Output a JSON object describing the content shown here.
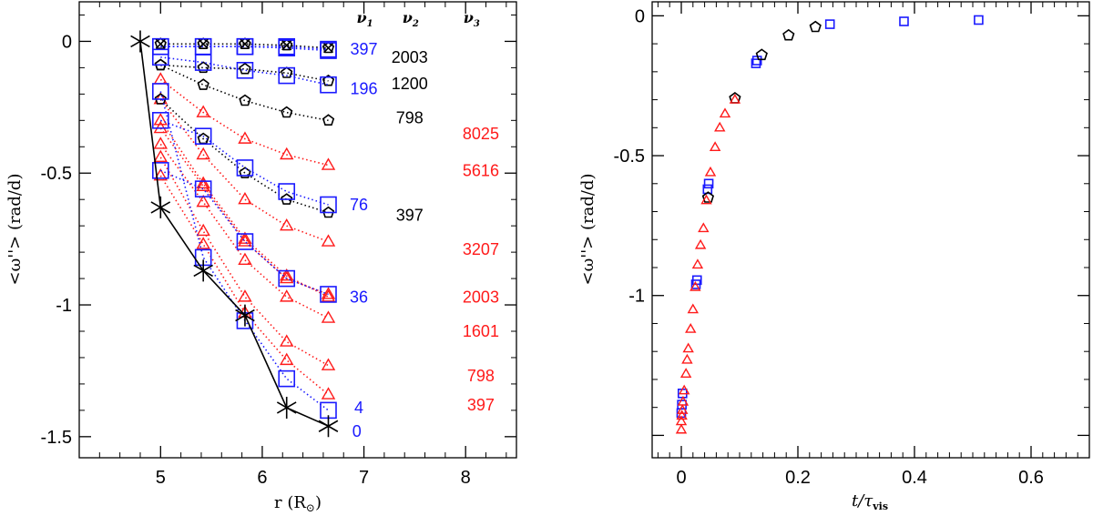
{
  "colors": {
    "blue": "#1a1aff",
    "black": "#000000",
    "red": "#ff1a1a"
  },
  "chart_data": [
    {
      "type": "line",
      "panel": "left",
      "xlabel_main": "r (R",
      "xlabel_sub": "⊙",
      "xlabel_close": ")",
      "ylabel": "<ω''> (rad/d)",
      "xlim": [
        4.2,
        8.5
      ],
      "ylim": [
        -1.58,
        0.15
      ],
      "xticks": [
        "5",
        "6",
        "7",
        "8"
      ],
      "yticks": [
        "0",
        "-0.5",
        "-1",
        "-1.5"
      ],
      "x": [
        5.0,
        5.42,
        5.83,
        6.24,
        6.65
      ],
      "column_headers": [
        {
          "symbol": "ν",
          "sub": "1"
        },
        {
          "symbol": "ν",
          "sub": "2"
        },
        {
          "symbol": "ν",
          "sub": "3"
        }
      ],
      "envelope": {
        "name": "envelope",
        "x": [
          4.8,
          5.0,
          5.42,
          5.83,
          6.24,
          6.65
        ],
        "values": [
          0.0,
          -0.63,
          -0.87,
          -1.04,
          -1.39,
          -1.46
        ]
      },
      "series_blue": [
        {
          "name": "397",
          "values": [
            -0.02,
            -0.02,
            -0.02,
            -0.025,
            -0.035
          ]
        },
        {
          "name": "196",
          "values": [
            -0.06,
            -0.08,
            -0.11,
            -0.13,
            -0.165
          ]
        },
        {
          "name": "76",
          "values": [
            -0.3,
            -0.36,
            -0.48,
            -0.57,
            -0.62
          ]
        },
        {
          "name": "36",
          "values": [
            -0.49,
            -0.56,
            -0.76,
            -0.9,
            -0.96
          ]
        },
        {
          "name": "4",
          "values": [
            -0.19,
            -0.82,
            -1.06,
            -1.28,
            -1.4
          ]
        },
        {
          "name": "0",
          "values": [
            -0.02,
            -0.02,
            -0.02,
            -0.02,
            -0.03
          ]
        }
      ],
      "series_black": [
        {
          "name": "2003",
          "values": [
            -0.01,
            -0.01,
            -0.01,
            -0.015,
            -0.025
          ]
        },
        {
          "name": "1200",
          "values": [
            -0.09,
            -0.1,
            -0.105,
            -0.12,
            -0.15
          ]
        },
        {
          "name": "798",
          "values": [
            -0.09,
            -0.165,
            -0.225,
            -0.27,
            -0.3
          ]
        },
        {
          "name": "397",
          "values": [
            -0.22,
            -0.37,
            -0.5,
            -0.6,
            -0.65
          ]
        }
      ],
      "series_red": [
        {
          "name": "8025",
          "values": [
            -0.145,
            -0.27,
            -0.37,
            -0.43,
            -0.47
          ]
        },
        {
          "name": "5616",
          "values": [
            -0.22,
            -0.43,
            -0.6,
            -0.7,
            -0.76
          ]
        },
        {
          "name": "3207",
          "values": [
            -0.3,
            -0.54,
            -0.75,
            -0.89,
            -0.97
          ]
        },
        {
          "name": "2003",
          "values": [
            -0.39,
            -0.61,
            -0.83,
            -0.97,
            -1.05
          ]
        },
        {
          "name": "1601",
          "values": [
            -0.44,
            -0.72,
            -0.97,
            -1.14,
            -1.23
          ]
        },
        {
          "name": "798",
          "values": [
            -0.51,
            -0.77,
            -1.03,
            -1.21,
            -1.34
          ]
        },
        {
          "name": "397",
          "values": [
            -0.33,
            -0.55,
            -0.76,
            -0.9,
            -0.96
          ]
        }
      ],
      "annotations": [
        {
          "text": "397",
          "color": "blue",
          "x": 7.0,
          "y": -0.03
        },
        {
          "text": "196",
          "color": "blue",
          "x": 7.0,
          "y": -0.18
        },
        {
          "text": "76",
          "color": "blue",
          "x": 6.95,
          "y": -0.62
        },
        {
          "text": "36",
          "color": "blue",
          "x": 6.95,
          "y": -0.97
        },
        {
          "text": "4",
          "color": "blue",
          "x": 6.95,
          "y": -1.39
        },
        {
          "text": "0",
          "color": "blue",
          "x": 6.93,
          "y": -1.48
        },
        {
          "text": "2003",
          "color": "black",
          "x": 7.45,
          "y": -0.06
        },
        {
          "text": "1200",
          "color": "black",
          "x": 7.45,
          "y": -0.16
        },
        {
          "text": "798",
          "color": "black",
          "x": 7.45,
          "y": -0.29
        },
        {
          "text": "397",
          "color": "black",
          "x": 7.45,
          "y": -0.66
        },
        {
          "text": "8025",
          "color": "red",
          "x": 8.15,
          "y": -0.35
        },
        {
          "text": "5616",
          "color": "red",
          "x": 8.15,
          "y": -0.49
        },
        {
          "text": "3207",
          "color": "red",
          "x": 8.15,
          "y": -0.79
        },
        {
          "text": "2003",
          "color": "red",
          "x": 8.15,
          "y": -0.97
        },
        {
          "text": "1601",
          "color": "red",
          "x": 8.15,
          "y": -1.1
        },
        {
          "text": "798",
          "color": "red",
          "x": 8.15,
          "y": -1.27
        },
        {
          "text": "397",
          "color": "red",
          "x": 8.15,
          "y": -1.38
        }
      ]
    },
    {
      "type": "scatter",
      "panel": "right",
      "xlabel_main": "t/τ",
      "xlabel_sub": "vis",
      "ylabel": "<ω''> (rad/d)",
      "xlim": [
        -0.05,
        0.7
      ],
      "ylim": [
        -1.58,
        0.05
      ],
      "xticks": [
        "0",
        "0.2",
        "0.4",
        "0.6"
      ],
      "yticks": [
        "0",
        "-0.5",
        "-1"
      ],
      "series": [
        {
          "name": "blue-squares",
          "color": "blue",
          "marker": "square",
          "x": [
            0.0,
            0.001,
            0.002,
            0.025,
            0.027,
            0.045,
            0.047,
            0.128,
            0.13,
            0.255,
            0.382,
            0.51
          ],
          "y": [
            -1.42,
            -1.39,
            -1.35,
            -0.96,
            -0.945,
            -0.62,
            -0.6,
            -0.17,
            -0.16,
            -0.03,
            -0.02,
            -0.015
          ]
        },
        {
          "name": "black-pentagons",
          "color": "black",
          "marker": "pentagon",
          "x": [
            0.046,
            0.092,
            0.138,
            0.184,
            0.23
          ],
          "y": [
            -0.65,
            -0.295,
            -0.14,
            -0.07,
            -0.04
          ]
        },
        {
          "name": "red-triangles",
          "color": "red",
          "marker": "triangle",
          "x": [
            0.0,
            0.0,
            0.001,
            0.002,
            0.003,
            0.005,
            0.008,
            0.01,
            0.012,
            0.016,
            0.02,
            0.024,
            0.028,
            0.033,
            0.038,
            0.043,
            0.05,
            0.058,
            0.066,
            0.075,
            0.092
          ],
          "y": [
            -1.48,
            -1.45,
            -1.43,
            -1.41,
            -1.38,
            -1.34,
            -1.28,
            -1.23,
            -1.19,
            -1.12,
            -1.05,
            -0.97,
            -0.89,
            -0.82,
            -0.76,
            -0.66,
            -0.56,
            -0.47,
            -0.4,
            -0.35,
            -0.3
          ]
        }
      ]
    }
  ]
}
